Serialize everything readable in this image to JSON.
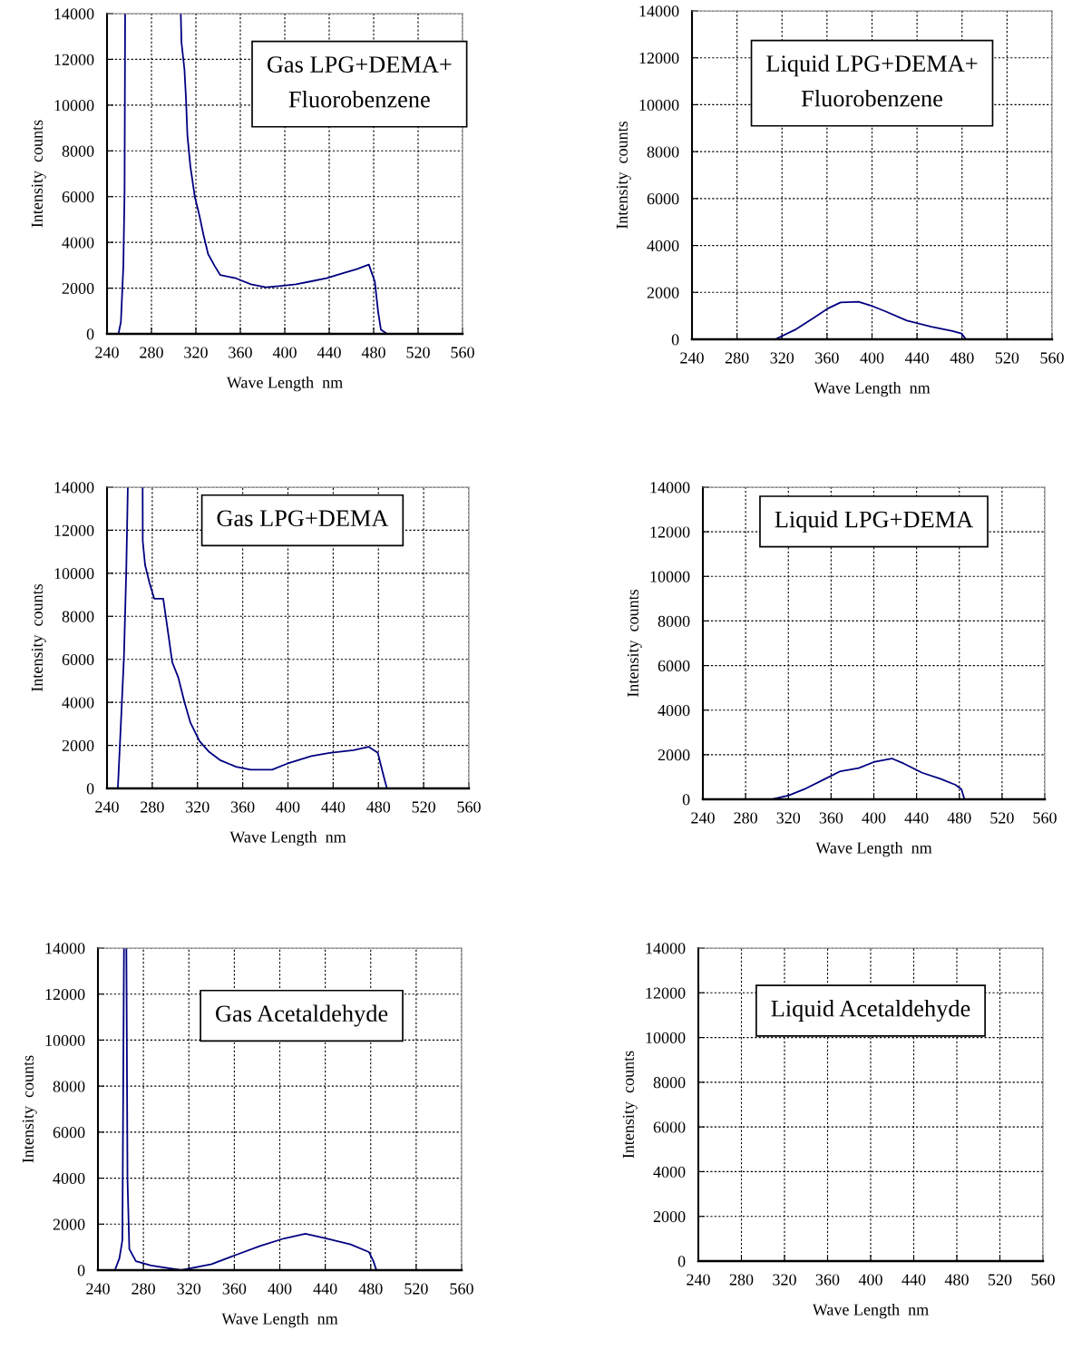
{
  "chart_data": [
    {
      "type": "line",
      "title": "Gas LPG+DEMA+\nFluorobenzene",
      "xlabel": "Wave Length  nm",
      "ylabel": "Intensity  counts",
      "xlim": [
        240,
        560
      ],
      "ylim": [
        0,
        14000
      ],
      "xticks": [
        240,
        280,
        320,
        360,
        400,
        440,
        480,
        520,
        560
      ],
      "yticks": [
        0,
        2000,
        4000,
        6000,
        8000,
        10000,
        12000,
        14000
      ],
      "grid": true,
      "series": [
        {
          "color": "#000080",
          "x": [
            250.3,
            252.5,
            254.7,
            255.8,
            256.3,
            280,
            306.4,
            307,
            309.7,
            311,
            312.4,
            315,
            319,
            323,
            327,
            331,
            337,
            342,
            356,
            369.6,
            383,
            396.7,
            410,
            424,
            437.6,
            451,
            464.8,
            475.7,
            478,
            481,
            484,
            486.5,
            492
          ],
          "values": [
            0,
            520,
            2960,
            6270,
            14000,
            null,
            14000,
            12750,
            11560,
            10370,
            8650,
            7330,
            6000,
            5210,
            4290,
            3490,
            2960,
            2570,
            2430,
            2170,
            2040,
            2100,
            2170,
            2300,
            2430,
            2630,
            2830,
            3030,
            2700,
            2300,
            980,
            190,
            0
          ]
        }
      ]
    },
    {
      "type": "line",
      "title": "Liquid LPG+DEMA+\nFluorobenzene",
      "xlabel": "Wave Length  nm",
      "ylabel": "Intensity  counts",
      "xlim": [
        240,
        560
      ],
      "ylim": [
        0,
        14000
      ],
      "xticks": [
        240,
        280,
        320,
        360,
        400,
        440,
        480,
        520,
        560
      ],
      "yticks": [
        0,
        2000,
        4000,
        6000,
        8000,
        10000,
        12000,
        14000
      ],
      "grid": true,
      "series": [
        {
          "color": "#000080",
          "x": [
            314,
            331.7,
            350.5,
            361,
            372,
            388,
            399,
            412,
            431,
            452.7,
            471.5,
            479.5,
            483.5
          ],
          "values": [
            0,
            410,
            990,
            1320,
            1570,
            1600,
            1440,
            1190,
            800,
            540,
            350,
            250,
            0
          ]
        }
      ]
    },
    {
      "type": "line",
      "title": "Gas LPG+DEMA",
      "xlabel": "Wave Length  nm",
      "ylabel": "Intensity  counts",
      "xlim": [
        240,
        560
      ],
      "ylim": [
        0,
        14000
      ],
      "xticks": [
        240,
        280,
        320,
        360,
        400,
        440,
        480,
        520,
        560
      ],
      "yticks": [
        0,
        2000,
        4000,
        6000,
        8000,
        10000,
        12000,
        14000
      ],
      "grid": true,
      "series": [
        {
          "color": "#000080",
          "x": [
            249.6,
            252.8,
            255,
            257,
            258.4,
            265,
            271.5,
            271.6,
            273.7,
            277.7,
            281.7,
            289.7,
            292.4,
            297.7,
            303,
            308.4,
            313.8,
            321.8,
            329.8,
            340.5,
            354,
            367,
            386,
            399.3,
            420.7,
            436.8,
            458,
            471.5,
            479.5,
            483.5,
            487.5
          ],
          "values": [
            0,
            3610,
            6150,
            10080,
            14000,
            null,
            14000,
            11490,
            10370,
            9530,
            8820,
            8820,
            7840,
            5860,
            5160,
            4030,
            3050,
            2200,
            1720,
            1300,
            1010,
            870,
            870,
            1150,
            1500,
            1650,
            1780,
            1930,
            1650,
            800,
            0
          ]
        }
      ]
    },
    {
      "type": "line",
      "title": "Liquid LPG+DEMA",
      "xlabel": "Wave Length  nm",
      "ylabel": "Intensity  counts",
      "xlim": [
        240,
        560
      ],
      "ylim": [
        0,
        14000
      ],
      "xticks": [
        240,
        280,
        320,
        360,
        400,
        440,
        480,
        520,
        560
      ],
      "yticks": [
        0,
        2000,
        4000,
        6000,
        8000,
        10000,
        12000,
        14000
      ],
      "grid": true,
      "series": [
        {
          "color": "#000080",
          "x": [
            305,
            320.6,
            334.8,
            354.6,
            368.8,
            385.8,
            399.9,
            416.8,
            428.2,
            445.2,
            462.2,
            476.3,
            482,
            484.8
          ],
          "values": [
            0,
            180,
            450,
            920,
            1260,
            1400,
            1670,
            1830,
            1600,
            1190,
            920,
            650,
            450,
            0
          ]
        }
      ]
    },
    {
      "type": "line",
      "title": "Gas Acetaldehyde",
      "xlabel": "Wave Length  nm",
      "ylabel": "Intensity  counts",
      "xlim": [
        240,
        560
      ],
      "ylim": [
        0,
        14000
      ],
      "xticks": [
        240,
        280,
        320,
        360,
        400,
        440,
        480,
        520,
        560
      ],
      "yticks": [
        0,
        2000,
        4000,
        6000,
        8000,
        10000,
        12000,
        14000
      ],
      "grid": true,
      "series": [
        {
          "color": "#000080",
          "x": [
            254.9,
            258.9,
            261.5,
            262.9,
            264,
            265,
            266,
            267.6,
            273.4,
            286.8,
            313.4,
            340,
            361.3,
            382.6,
            403.9,
            422.5,
            441.1,
            462.4,
            478.4,
            482.4,
            485
          ],
          "values": [
            0,
            520,
            1310,
            14000,
            null,
            14000,
            3940,
            920,
            390,
            200,
            0,
            260,
            660,
            1050,
            1380,
            1580,
            1380,
            1120,
            790,
            390,
            0
          ]
        }
      ]
    },
    {
      "type": "line",
      "title": "Liquid Acetaldehyde",
      "xlabel": "Wave Length  nm",
      "ylabel": "Intensity  counts",
      "xlim": [
        240,
        560
      ],
      "ylim": [
        0,
        14000
      ],
      "xticks": [
        240,
        280,
        320,
        360,
        400,
        440,
        480,
        520,
        560
      ],
      "yticks": [
        0,
        2000,
        4000,
        6000,
        8000,
        10000,
        12000,
        14000
      ],
      "grid": true
    }
  ]
}
